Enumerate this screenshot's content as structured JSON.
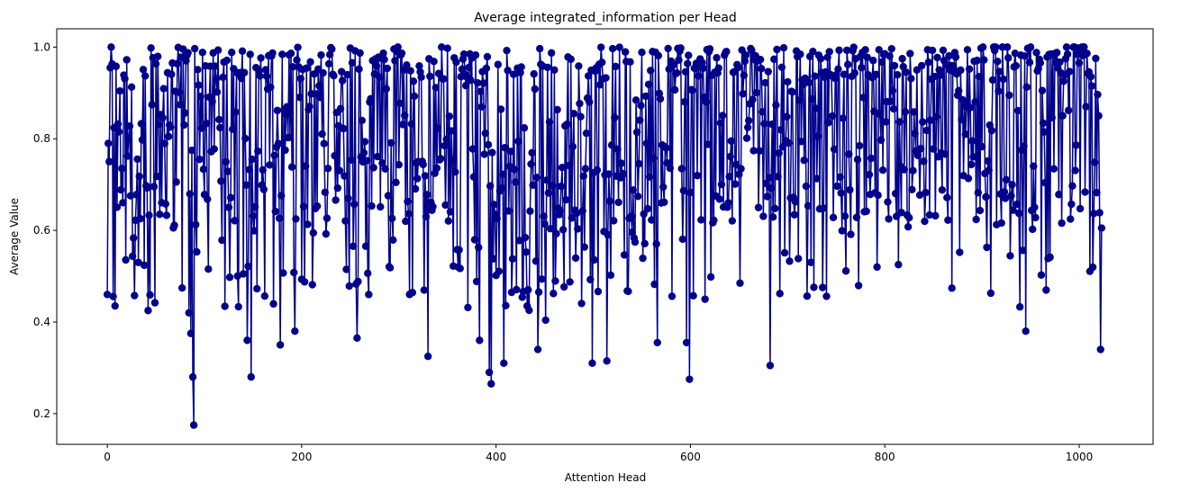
{
  "chart_data": {
    "type": "line",
    "title": "Average integrated_information per Head",
    "xlabel": "Attention Head",
    "ylabel": "Average Value",
    "xlim": [
      -52,
      1076
    ],
    "ylim": [
      0.133,
      1.04
    ],
    "xticks": [
      0,
      200,
      400,
      600,
      800,
      1000
    ],
    "yticks": [
      0.2,
      0.4,
      0.6,
      0.8,
      1.0
    ],
    "xtick_labels": [
      "0",
      "200",
      "400",
      "600",
      "800",
      "1000"
    ],
    "ytick_labels": [
      "0.2",
      "0.4",
      "0.6",
      "0.8",
      "1.0"
    ],
    "marker": "circle",
    "grid": false,
    "legend": "none",
    "colors": {
      "series": "#00008b",
      "axes": "#000000",
      "background": "#ffffff"
    },
    "series": [
      {
        "x_start": 0,
        "x_step": 1,
        "count": 1024,
        "key_points": [
          {
            "x": 0,
            "y": 0.46
          },
          {
            "x": 2,
            "y": 0.75
          },
          {
            "x": 4,
            "y": 1.0
          },
          {
            "x": 8,
            "y": 0.435
          },
          {
            "x": 32,
            "y": 0.53
          },
          {
            "x": 42,
            "y": 0.425
          },
          {
            "x": 84,
            "y": 0.42
          },
          {
            "x": 86,
            "y": 0.375
          },
          {
            "x": 88,
            "y": 0.28
          },
          {
            "x": 89,
            "y": 0.175
          },
          {
            "x": 144,
            "y": 0.36
          },
          {
            "x": 148,
            "y": 0.28
          },
          {
            "x": 178,
            "y": 0.35
          },
          {
            "x": 193,
            "y": 0.38
          },
          {
            "x": 257,
            "y": 0.365
          },
          {
            "x": 299,
            "y": 1.0
          },
          {
            "x": 330,
            "y": 0.325
          },
          {
            "x": 344,
            "y": 1.0
          },
          {
            "x": 383,
            "y": 0.36
          },
          {
            "x": 393,
            "y": 0.29
          },
          {
            "x": 395,
            "y": 0.265
          },
          {
            "x": 408,
            "y": 0.31
          },
          {
            "x": 443,
            "y": 0.34
          },
          {
            "x": 499,
            "y": 0.31
          },
          {
            "x": 514,
            "y": 0.315
          },
          {
            "x": 566,
            "y": 0.355
          },
          {
            "x": 596,
            "y": 0.355
          },
          {
            "x": 599,
            "y": 0.275
          },
          {
            "x": 682,
            "y": 0.305
          },
          {
            "x": 792,
            "y": 0.52
          },
          {
            "x": 945,
            "y": 0.38
          },
          {
            "x": 1022,
            "y": 0.34
          },
          {
            "x": 1023,
            "y": 0.605
          }
        ]
      }
    ]
  }
}
